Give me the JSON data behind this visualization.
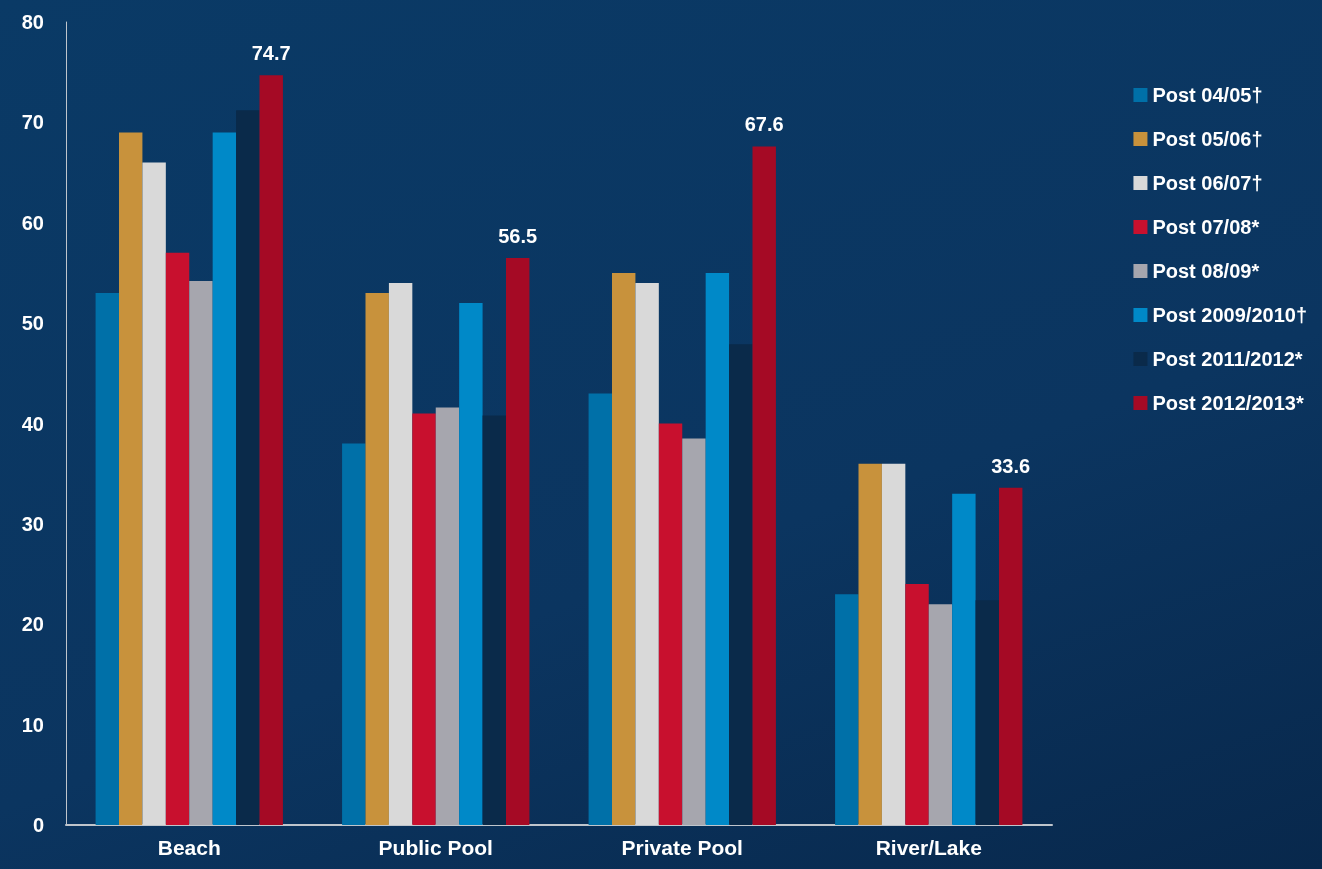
{
  "chart_data": {
    "type": "bar",
    "categories": [
      "Beach",
      "Public Pool",
      "Private Pool",
      "River/Lake"
    ],
    "series": [
      {
        "name": "Post 04/05†",
        "color": "#0070a8",
        "values": [
          53,
          38,
          43,
          23
        ]
      },
      {
        "name": "Post 05/06†",
        "color": "#c8923c",
        "values": [
          69,
          53,
          55,
          36
        ]
      },
      {
        "name": "Post 06/07†",
        "color": "#d9d9d9",
        "values": [
          66,
          54,
          54,
          36
        ]
      },
      {
        "name": "Post 07/08*",
        "color": "#c8102e",
        "values": [
          57,
          41,
          40,
          24
        ]
      },
      {
        "name": "Post 08/09*",
        "color": "#a6a6ae",
        "values": [
          54.2,
          41.6,
          38.5,
          22
        ]
      },
      {
        "name": "Post 2009/2010†",
        "color": "#0089c8",
        "values": [
          69,
          52,
          55,
          33
        ]
      },
      {
        "name": "Post 2011/2012*",
        "color": "#0a2a4a",
        "values": [
          71.2,
          40.8,
          47.9,
          22.4
        ]
      },
      {
        "name": "Post 2012/2013*",
        "color": "#a50a25",
        "values": [
          74.7,
          56.5,
          67.6,
          33.6
        ],
        "value_labels": [
          "74.7",
          "56.5",
          "67.6",
          "33.6"
        ]
      }
    ],
    "ylim": [
      0,
      80
    ],
    "yticks": [
      0,
      10,
      20,
      30,
      40,
      50,
      60,
      70,
      80
    ],
    "grid": false,
    "legend": "right"
  }
}
